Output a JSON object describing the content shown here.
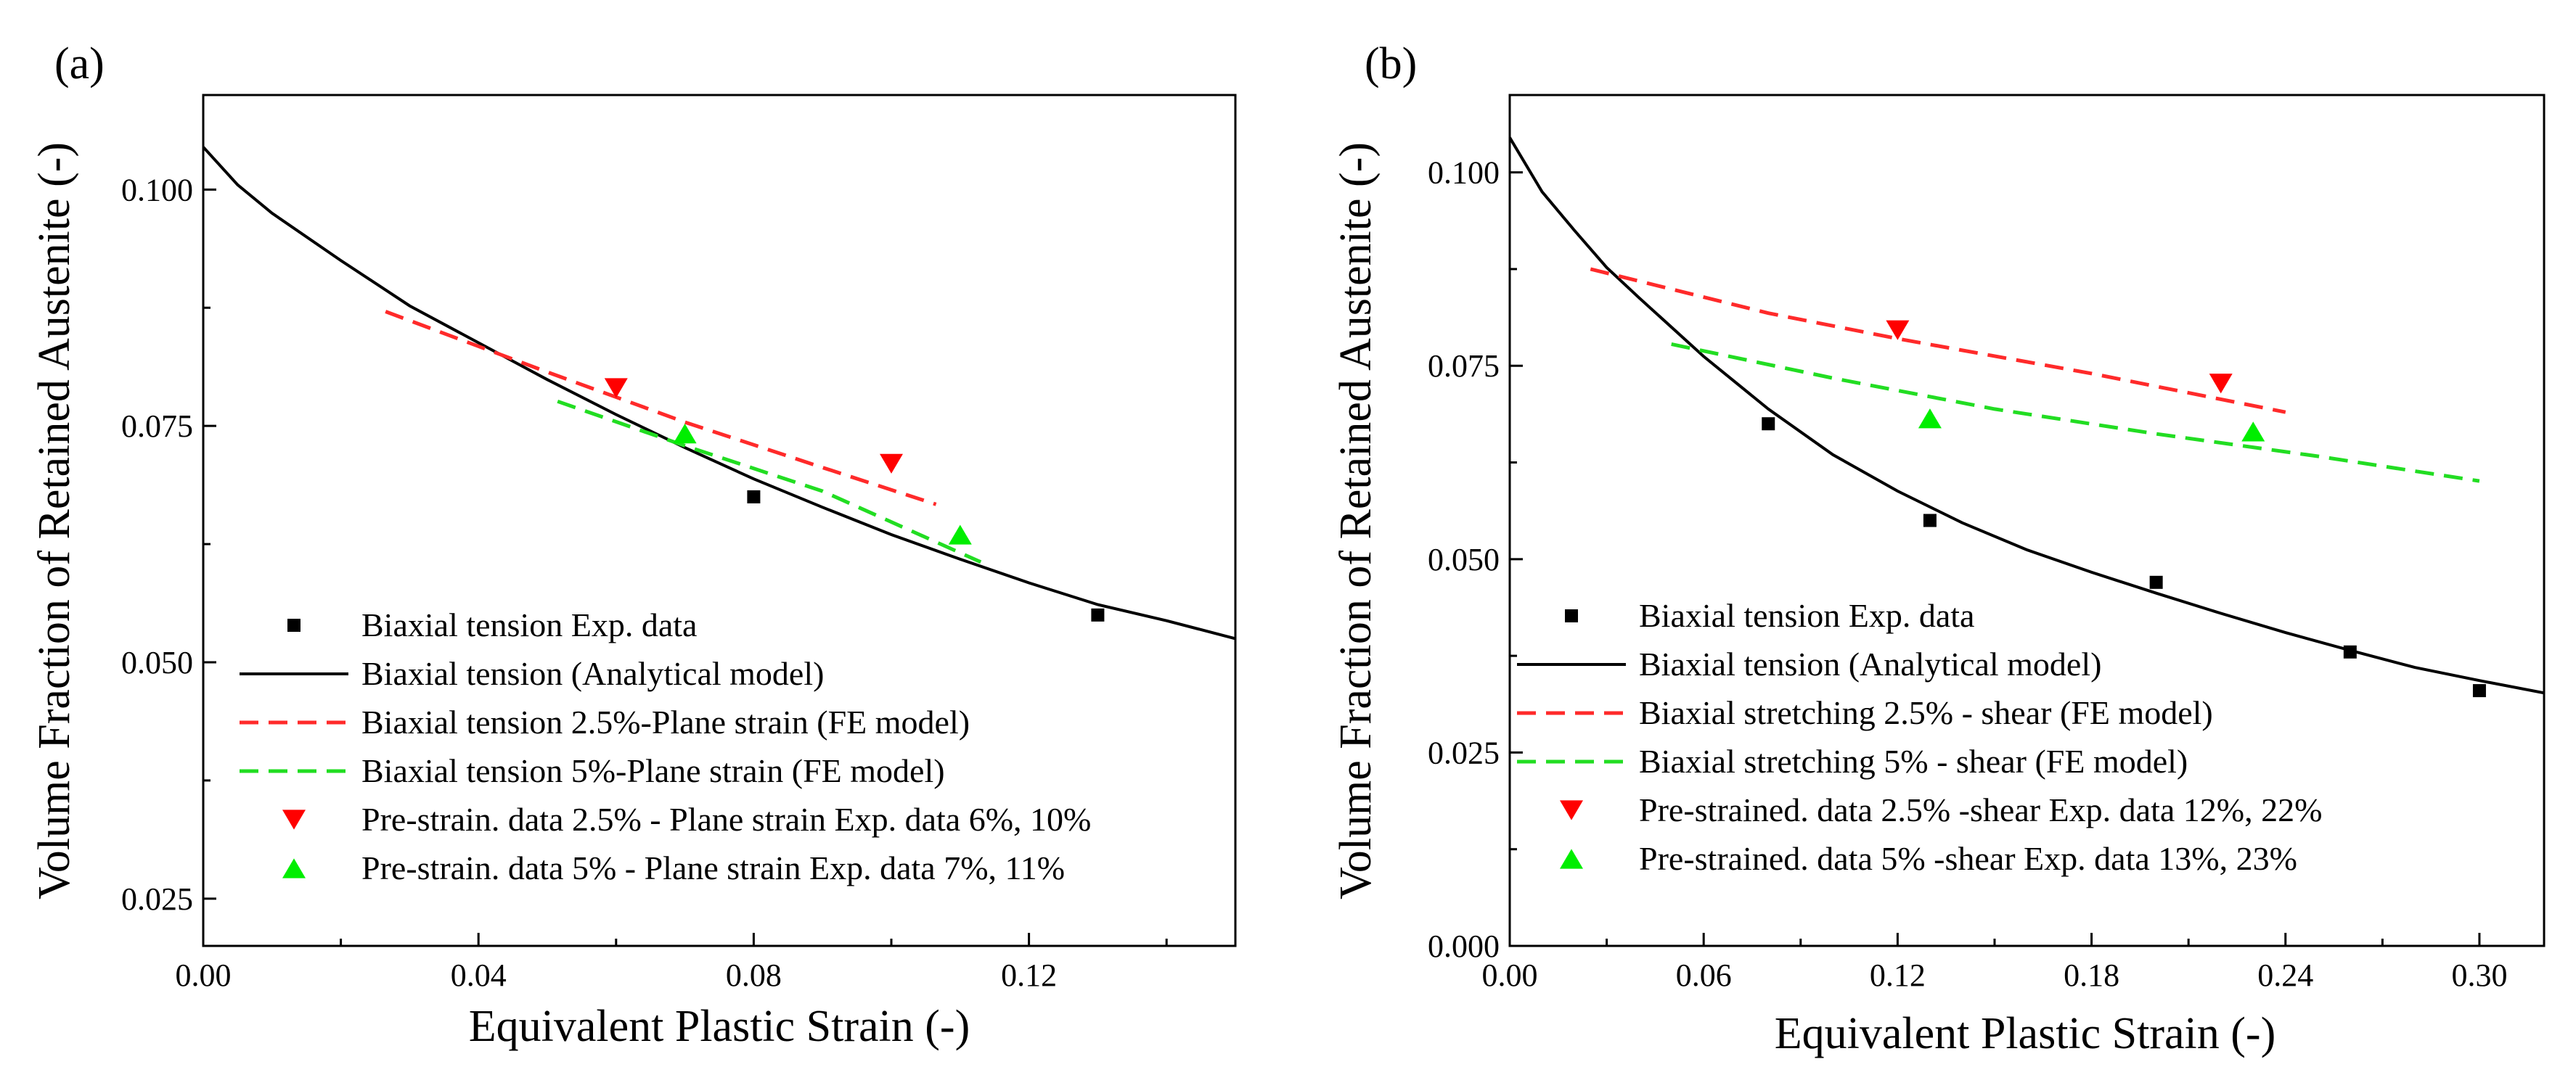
{
  "chart_data": [
    {
      "panel": "(a)",
      "type": "scatter",
      "xlabel": "Equivalent Plastic Strain (-)",
      "ylabel": "Volume Fraction of Retained Austenite (-)",
      "xlim": [
        0,
        0.15
      ],
      "ylim": [
        0.02,
        0.11
      ],
      "xticks": [
        0.0,
        0.04,
        0.08,
        0.12
      ],
      "xtick_labels": [
        "0.00",
        "0.04",
        "0.08",
        "0.12"
      ],
      "yticks": [
        0.025,
        0.05,
        0.075,
        0.1
      ],
      "ytick_labels": [
        "0.025",
        "0.050",
        "0.075",
        "0.100"
      ],
      "grid": false,
      "legend_position": "bottom-left",
      "series": [
        {
          "name": "Biaxial tension Exp. data",
          "kind": "square",
          "color": "#000000",
          "x": [
            0.08,
            0.13
          ],
          "y": [
            0.0675,
            0.055
          ]
        },
        {
          "name": "Biaxial tension (Analytical model)",
          "kind": "line",
          "color": "#000000",
          "x": [
            0.0,
            0.005,
            0.01,
            0.02,
            0.03,
            0.04,
            0.05,
            0.06,
            0.07,
            0.08,
            0.09,
            0.1,
            0.11,
            0.12,
            0.13,
            0.14,
            0.15
          ],
          "y": [
            0.1045,
            0.1005,
            0.0975,
            0.0925,
            0.0877,
            0.0838,
            0.0799,
            0.0762,
            0.0727,
            0.0694,
            0.0664,
            0.0635,
            0.0609,
            0.0584,
            0.0561,
            0.0544,
            0.0525
          ]
        },
        {
          "name": "Biaxial tension 2.5%-Plane strain (FE model)",
          "kind": "dashed",
          "color": "#ff2a2a",
          "x": [
            0.0265,
            0.05,
            0.07,
            0.09,
            0.1065
          ],
          "y": [
            0.0871,
            0.0807,
            0.0754,
            0.0706,
            0.0667
          ]
        },
        {
          "name": "Biaxial tension 5%-Plane strain (FE model)",
          "kind": "dashed",
          "color": "#22dd22",
          "x": [
            0.0515,
            0.07,
            0.09,
            0.113
          ],
          "y": [
            0.0776,
            0.0729,
            0.0681,
            0.0606
          ]
        },
        {
          "name": "Pre-strain. data 2.5% - Plane strain Exp. data 6%, 10%",
          "kind": "triangle-down",
          "color": "#ff0000",
          "x": [
            0.06,
            0.1
          ],
          "y": [
            0.079,
            0.071
          ]
        },
        {
          "name": "Pre-strain. data 5% - Plane strain  Exp. data 7%, 11%",
          "kind": "triangle-up",
          "color": "#00ee00",
          "x": [
            0.07,
            0.11
          ],
          "y": [
            0.0742,
            0.0635
          ]
        }
      ]
    },
    {
      "panel": "(b)",
      "type": "scatter",
      "xlabel": "Equivalent Plastic Strain (-)",
      "ylabel": "Volume Fraction of Retained Austenite (-)",
      "xlim": [
        0,
        0.32
      ],
      "ylim": [
        0,
        0.11
      ],
      "xticks": [
        0.0,
        0.06,
        0.12,
        0.18,
        0.24,
        0.3
      ],
      "xtick_labels": [
        "0.00",
        "0.06",
        "0.12",
        "0.18",
        "0.24",
        "0.30"
      ],
      "yticks": [
        0.0,
        0.025,
        0.05,
        0.075,
        0.1
      ],
      "ytick_labels": [
        "0.000",
        "0.025",
        "0.050",
        "0.075",
        "0.100"
      ],
      "grid": false,
      "legend_position": "bottom-left",
      "series": [
        {
          "name": "Biaxial tension Exp. data",
          "kind": "square",
          "color": "#000000",
          "x": [
            0.08,
            0.13,
            0.2,
            0.26,
            0.3
          ],
          "y": [
            0.0675,
            0.055,
            0.047,
            0.038,
            0.033
          ]
        },
        {
          "name": "Biaxial tension (Analytical model)",
          "kind": "line",
          "color": "#000000",
          "x": [
            0.0,
            0.01,
            0.02,
            0.03,
            0.04,
            0.06,
            0.08,
            0.1,
            0.12,
            0.14,
            0.16,
            0.18,
            0.2,
            0.22,
            0.24,
            0.26,
            0.28,
            0.3,
            0.32
          ],
          "y": [
            0.1045,
            0.0975,
            0.0925,
            0.0877,
            0.0838,
            0.0762,
            0.0694,
            0.0635,
            0.0588,
            0.0547,
            0.0512,
            0.0483,
            0.0456,
            0.043,
            0.0405,
            0.0382,
            0.036,
            0.0343,
            0.0327
          ]
        },
        {
          "name": "Biaxial stretching 2.5% - shear (FE model)",
          "kind": "dashed",
          "color": "#ff2a2a",
          "x": [
            0.025,
            0.08,
            0.12,
            0.18,
            0.24
          ],
          "y": [
            0.0875,
            0.0818,
            0.0785,
            0.074,
            0.069
          ]
        },
        {
          "name": "Biaxial stretching 5% - shear (FE model)",
          "kind": "dashed",
          "color": "#22dd22",
          "x": [
            0.05,
            0.1,
            0.15,
            0.2,
            0.25,
            0.3
          ],
          "y": [
            0.0778,
            0.0734,
            0.0694,
            0.0662,
            0.0633,
            0.0601
          ]
        },
        {
          "name": "Pre-strained. data 2.5% -shear Exp. data 12%, 22%",
          "kind": "triangle-down",
          "color": "#ff0000",
          "x": [
            0.12,
            0.22
          ],
          "y": [
            0.0796,
            0.0727
          ]
        },
        {
          "name": "Pre-strained. data 5% -shear Exp. data 13%, 23%",
          "kind": "triangle-up",
          "color": "#00ee00",
          "x": [
            0.13,
            0.23
          ],
          "y": [
            0.0682,
            0.0665
          ]
        }
      ]
    }
  ]
}
